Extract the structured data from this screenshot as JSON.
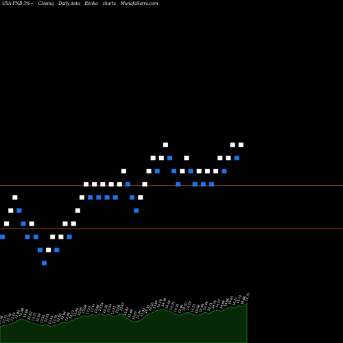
{
  "header": {
    "symbol": "USA FNB 3%~",
    "mode": "Closing",
    "frequency": "Daily data",
    "chart_type": "Renko",
    "suffix": "charts",
    "site": "MunafaSutra.com"
  },
  "colors": {
    "background": "#000000",
    "up_brick": "#ffffff",
    "down_brick": "#1e73e8",
    "reference_line": "#8b3a2a",
    "volume_fill": "#062806",
    "volume_stroke": "#1a8a1a",
    "label_text": "#ffffff"
  },
  "chart_data": {
    "type": "renko",
    "price_domain": [
      1,
      13
    ],
    "reference_lines": [
      3.9,
      0.6
    ],
    "bricks": [
      {
        "level": 0,
        "dir": "down"
      },
      {
        "level": 1,
        "dir": "up"
      },
      {
        "level": 2,
        "dir": "up"
      },
      {
        "level": 3,
        "dir": "up"
      },
      {
        "level": 2,
        "dir": "down"
      },
      {
        "level": 1,
        "dir": "down"
      },
      {
        "level": 0,
        "dir": "down"
      },
      {
        "level": 1,
        "dir": "up"
      },
      {
        "level": 0,
        "dir": "down"
      },
      {
        "level": -1,
        "dir": "down"
      },
      {
        "level": -2,
        "dir": "down"
      },
      {
        "level": -1,
        "dir": "up"
      },
      {
        "level": 0,
        "dir": "up"
      },
      {
        "level": -1,
        "dir": "down"
      },
      {
        "level": 0,
        "dir": "up"
      },
      {
        "level": 1,
        "dir": "up"
      },
      {
        "level": 0,
        "dir": "down"
      },
      {
        "level": 1,
        "dir": "up"
      },
      {
        "level": 2,
        "dir": "up"
      },
      {
        "level": 3,
        "dir": "up"
      },
      {
        "level": 4,
        "dir": "up"
      },
      {
        "level": 3,
        "dir": "down"
      },
      {
        "level": 4,
        "dir": "up"
      },
      {
        "level": 3,
        "dir": "down"
      },
      {
        "level": 4,
        "dir": "up"
      },
      {
        "level": 3,
        "dir": "down"
      },
      {
        "level": 4,
        "dir": "up"
      },
      {
        "level": 3,
        "dir": "down"
      },
      {
        "level": 4,
        "dir": "up"
      },
      {
        "level": 5,
        "dir": "up"
      },
      {
        "level": 4,
        "dir": "down"
      },
      {
        "level": 3,
        "dir": "down"
      },
      {
        "level": 2,
        "dir": "down"
      },
      {
        "level": 3,
        "dir": "up"
      },
      {
        "level": 4,
        "dir": "up"
      },
      {
        "level": 5,
        "dir": "up"
      },
      {
        "level": 6,
        "dir": "up"
      },
      {
        "level": 5,
        "dir": "down"
      },
      {
        "level": 6,
        "dir": "up"
      },
      {
        "level": 7,
        "dir": "up"
      },
      {
        "level": 6,
        "dir": "down"
      },
      {
        "level": 5,
        "dir": "down"
      },
      {
        "level": 4,
        "dir": "down"
      },
      {
        "level": 5,
        "dir": "up"
      },
      {
        "level": 6,
        "dir": "up"
      },
      {
        "level": 5,
        "dir": "down"
      },
      {
        "level": 4,
        "dir": "down"
      },
      {
        "level": 5,
        "dir": "up"
      },
      {
        "level": 4,
        "dir": "down"
      },
      {
        "level": 5,
        "dir": "up"
      },
      {
        "level": 4,
        "dir": "down"
      },
      {
        "level": 5,
        "dir": "up"
      },
      {
        "level": 6,
        "dir": "up"
      },
      {
        "level": 5,
        "dir": "down"
      },
      {
        "level": 6,
        "dir": "up"
      },
      {
        "level": 7,
        "dir": "up"
      },
      {
        "level": 6,
        "dir": "down"
      },
      {
        "level": 7,
        "dir": "up"
      }
    ],
    "volume_domain": [
      0,
      100
    ],
    "volume": [
      30,
      32,
      34,
      36,
      40,
      44,
      42,
      38,
      36,
      34,
      32,
      34,
      30,
      32,
      34,
      38,
      36,
      40,
      44,
      46,
      50,
      48,
      52,
      50,
      54,
      50,
      52,
      48,
      50,
      54,
      46,
      42,
      38,
      40,
      44,
      50,
      54,
      58,
      60,
      62,
      58,
      56,
      52,
      50,
      54,
      56,
      52,
      50,
      52,
      56,
      54,
      58,
      60,
      58,
      62,
      66,
      64,
      68,
      66,
      72
    ],
    "volume_labels": [
      "13.36",
      "13.51",
      "13.79",
      "13.64",
      "12.93",
      "12.98",
      "13.09",
      "12.87",
      "13.21",
      "12.78",
      "13.33",
      "12.51",
      "13.14",
      "13.01",
      "12.50",
      "12.94",
      "12.88",
      "13.12",
      "13.40",
      "12.95",
      "13.08",
      "13.23",
      "13.47",
      "13.68",
      "13.54",
      "13.26",
      "13.64",
      "13.15",
      "13.06",
      "13.87",
      "13.82",
      "13.80",
      "13.53",
      "13.44",
      "13.93",
      "14.15",
      "14.16",
      "13.87",
      "14.18",
      "14.36",
      "14.44",
      "14.22",
      "14.03",
      "13.99",
      "14.30",
      "14.20",
      "14.55",
      "14.68",
      "14.60",
      "14.49",
      "14.71",
      "14.75",
      "14.57",
      "14.88",
      "14.96",
      "15.05",
      "16.21",
      "16.72",
      "16.86",
      "16.77"
    ]
  }
}
